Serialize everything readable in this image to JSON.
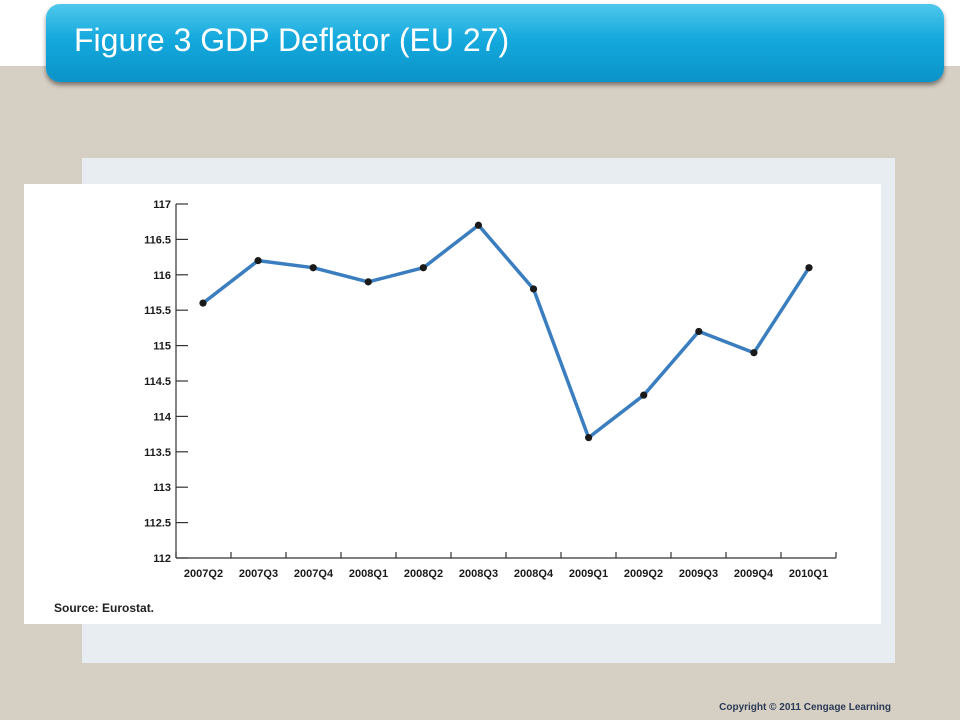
{
  "slide": {
    "title": "Figure 3 GDP Deflator (EU 27)",
    "copyright": "Copyright © 2011 Cengage Learning",
    "source": "Source: Eurostat.",
    "colors": {
      "banner": "#14a9dd",
      "background": "#d6cfc4",
      "line": "#3a7ebf",
      "marker": "#1a1a1a"
    }
  },
  "chart_data": {
    "type": "line",
    "title": "",
    "xlabel": "",
    "ylabel": "",
    "categories": [
      "2007Q2",
      "2007Q3",
      "2007Q4",
      "2008Q1",
      "2008Q2",
      "2008Q3",
      "2008Q4",
      "2009Q1",
      "2009Q2",
      "2009Q3",
      "2009Q4",
      "2010Q1"
    ],
    "series": [
      {
        "values": [
          115.6,
          116.2,
          116.1,
          115.9,
          116.1,
          116.7,
          115.8,
          113.7,
          114.3,
          115.2,
          114.9,
          116.1
        ]
      }
    ],
    "ylim": [
      112,
      117
    ],
    "yticks": [
      "112",
      "112.5",
      "113",
      "113.5",
      "114",
      "114.5",
      "115",
      "115.5",
      "116",
      "116.5",
      "117"
    ],
    "grid": false,
    "legend": "none"
  }
}
